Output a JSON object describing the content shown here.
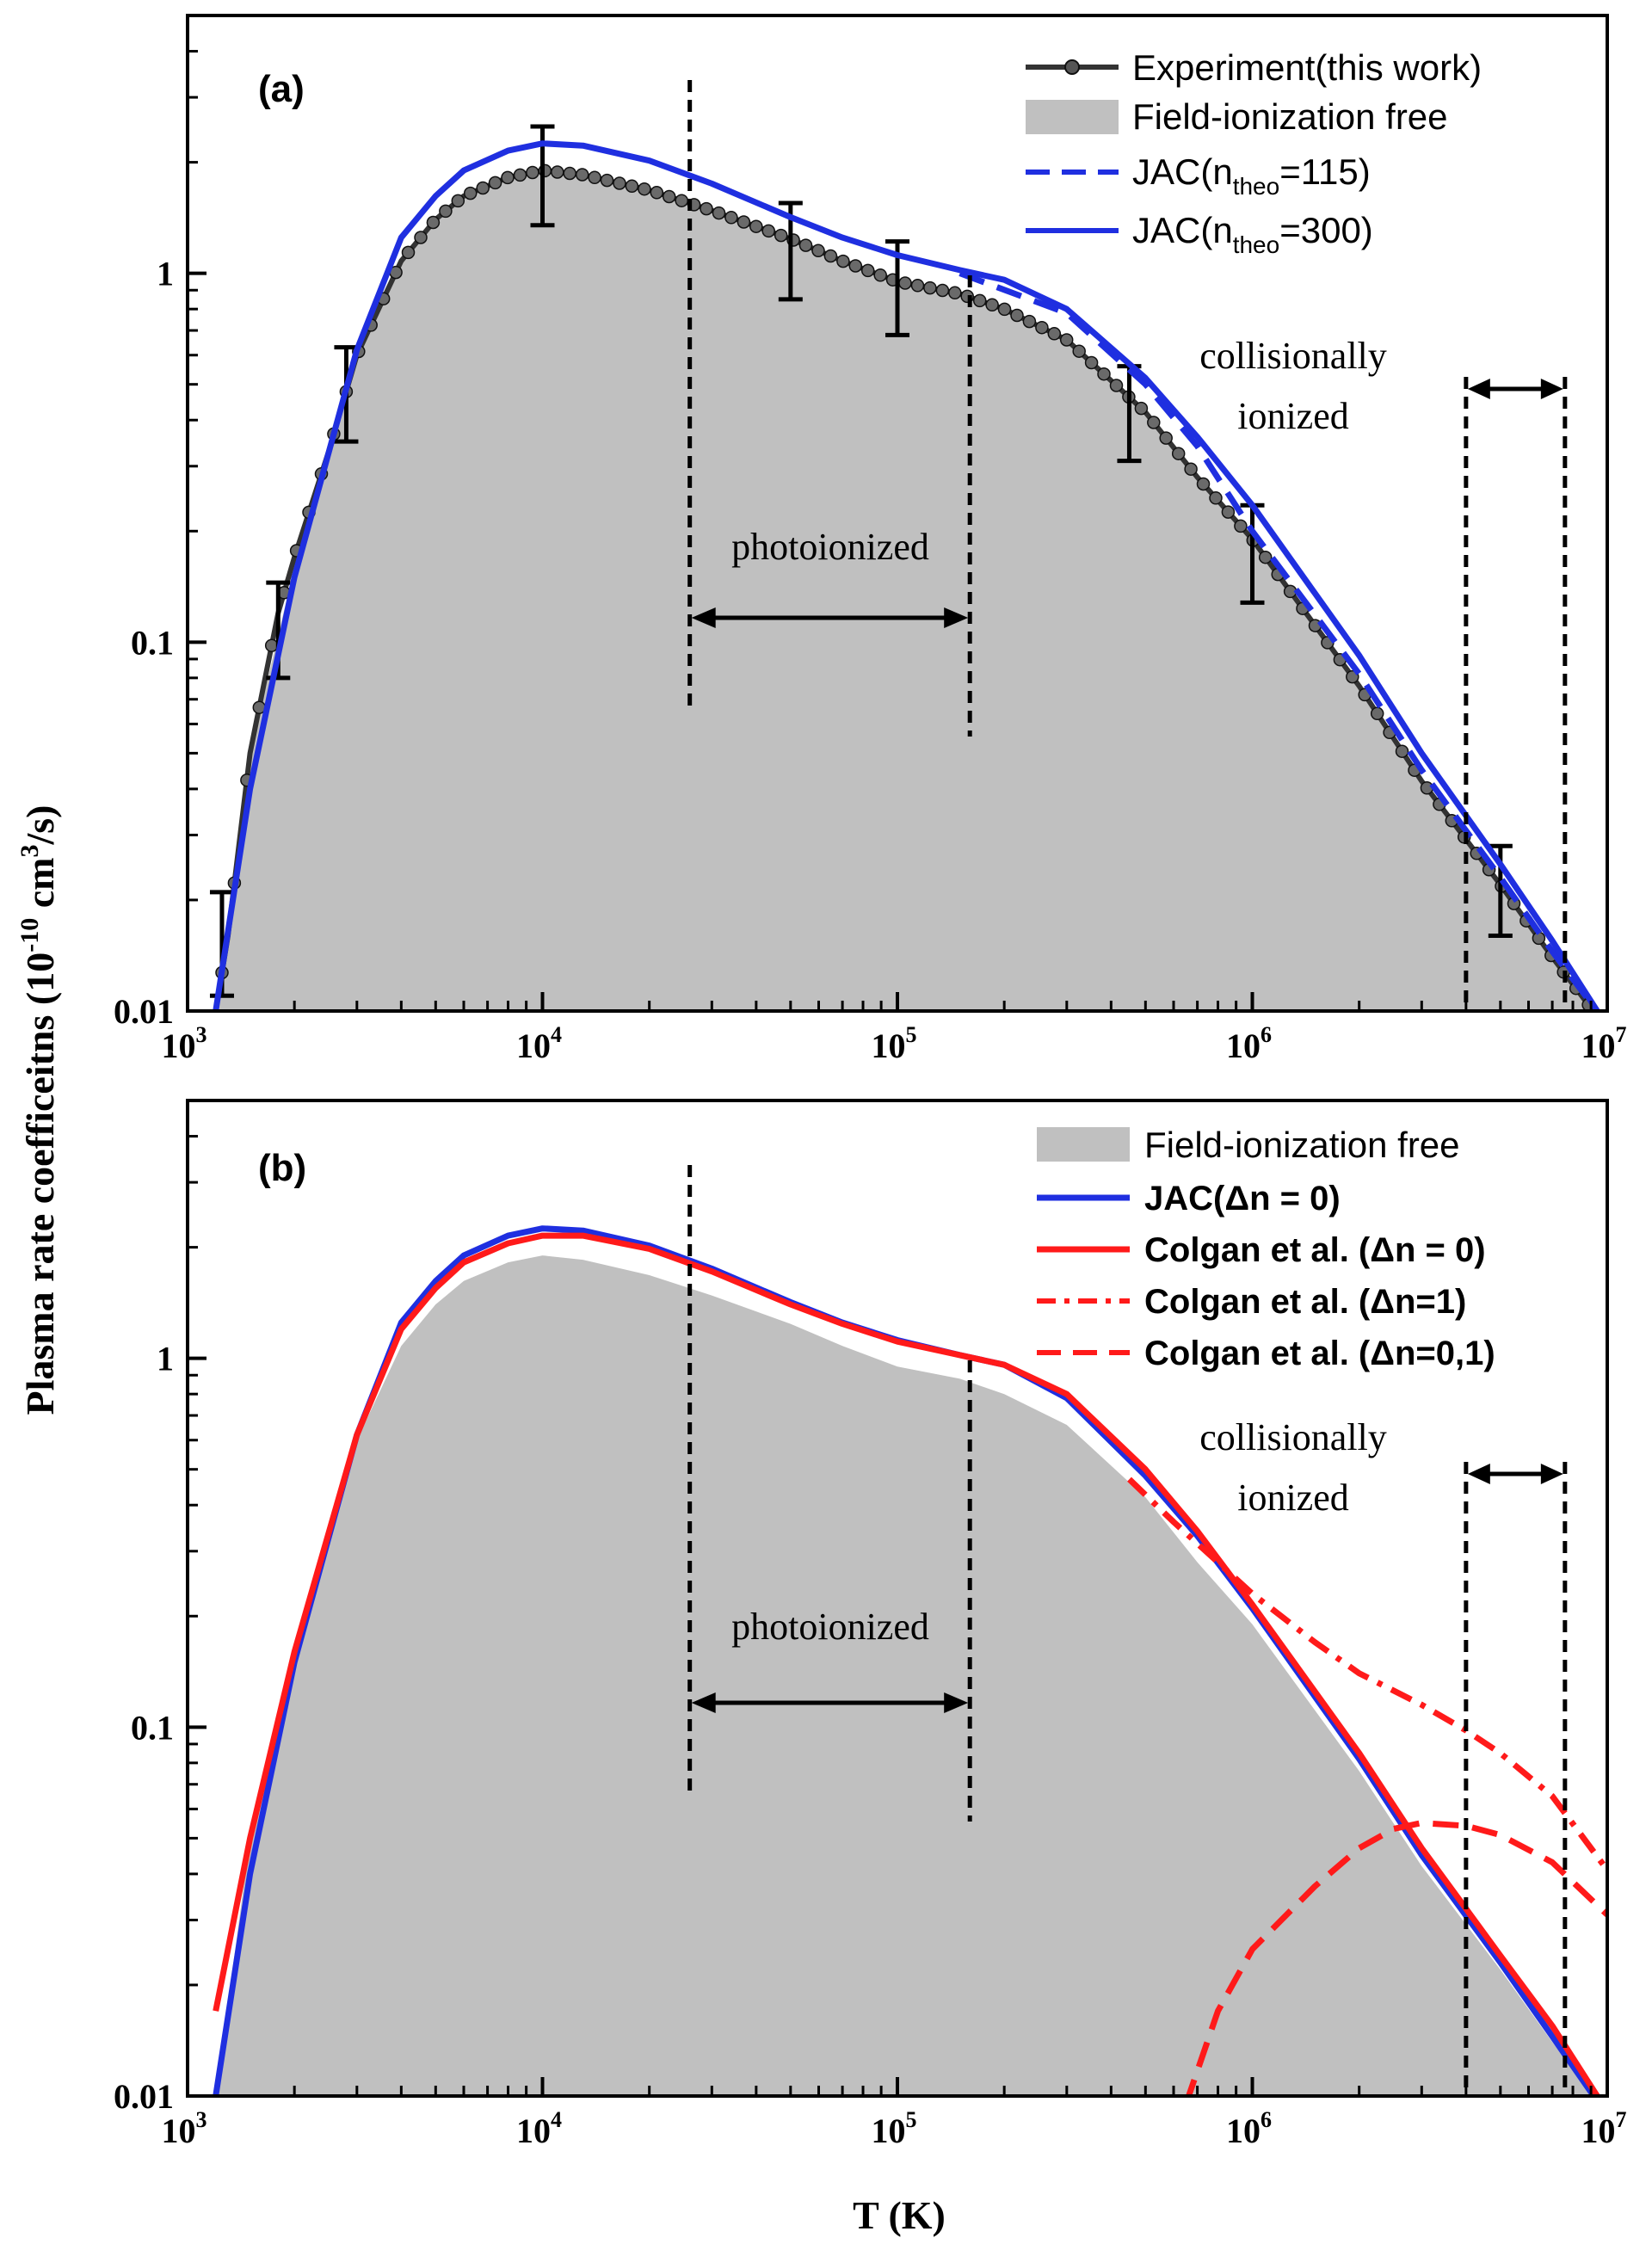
{
  "chart_data": [
    {
      "panel": "(a)",
      "type": "line",
      "xscale": "log",
      "yscale": "log",
      "xlim": [
        1000,
        10000000
      ],
      "ylim": [
        0.01,
        5
      ],
      "xlabel": "T (K)",
      "ylabel": "Plasma rate coefficeitns (10^-10 cm^3/s)",
      "x_ticks": [
        1000,
        10000,
        100000,
        1000000,
        10000000
      ],
      "x_tick_labels": [
        "10^3",
        "10^4",
        "10^5",
        "10^6",
        "10^7"
      ],
      "y_ticks": [
        0.01,
        0.1,
        1
      ],
      "y_tick_labels": [
        "0.01",
        "0.1",
        "1"
      ],
      "legend_position": "top-right",
      "series": [
        {
          "name": "Field-ionization free",
          "legend_label": "Field-ionization free",
          "style": "area",
          "color": "#c0c0c0",
          "points": [
            [
              1200,
              0.01
            ],
            [
              1500,
              0.05
            ],
            [
              2000,
              0.16
            ],
            [
              3000,
              0.6
            ],
            [
              4000,
              1.08
            ],
            [
              5000,
              1.4
            ],
            [
              6000,
              1.62
            ],
            [
              8000,
              1.82
            ],
            [
              10000,
              1.9
            ],
            [
              13000,
              1.85
            ],
            [
              20000,
              1.68
            ],
            [
              30000,
              1.48
            ],
            [
              50000,
              1.24
            ],
            [
              70000,
              1.08
            ],
            [
              100000,
              0.95
            ],
            [
              150000,
              0.88
            ],
            [
              200000,
              0.8
            ],
            [
              300000,
              0.66
            ],
            [
              500000,
              0.42
            ],
            [
              700000,
              0.28
            ],
            [
              1000000,
              0.19
            ],
            [
              2000000,
              0.076
            ],
            [
              3000000,
              0.042
            ],
            [
              5000000,
              0.022
            ],
            [
              7000000,
              0.014
            ],
            [
              9500000,
              0.0095
            ]
          ]
        },
        {
          "name": "Experiment(this work)",
          "legend_label": "Experiment(this work)",
          "style": "line-markers",
          "color": "#333333",
          "points": [
            [
              1200,
              0.01
            ],
            [
              1300,
              0.016
            ],
            [
              1500,
              0.05
            ],
            [
              1800,
              0.12
            ],
            [
              2000,
              0.17
            ],
            [
              2500,
              0.33
            ],
            [
              3000,
              0.6
            ],
            [
              4000,
              1.08
            ],
            [
              5000,
              1.4
            ],
            [
              6000,
              1.62
            ],
            [
              8000,
              1.82
            ],
            [
              10000,
              1.9
            ],
            [
              13000,
              1.85
            ],
            [
              20000,
              1.68
            ],
            [
              30000,
              1.48
            ],
            [
              50000,
              1.24
            ],
            [
              70000,
              1.08
            ],
            [
              100000,
              0.95
            ],
            [
              150000,
              0.88
            ],
            [
              200000,
              0.8
            ],
            [
              300000,
              0.66
            ],
            [
              500000,
              0.42
            ],
            [
              700000,
              0.28
            ],
            [
              1000000,
              0.19
            ],
            [
              2000000,
              0.076
            ],
            [
              3000000,
              0.042
            ],
            [
              5000000,
              0.022
            ],
            [
              7000000,
              0.014
            ],
            [
              9500000,
              0.0095
            ]
          ],
          "error_bars": [
            [
              1250,
              0.015,
              0.011,
              0.021
            ],
            [
              1800,
              0.11,
              0.08,
              0.145
            ],
            [
              2800,
              0.48,
              0.35,
              0.63
            ],
            [
              10000,
              1.85,
              1.35,
              2.5
            ],
            [
              50000,
              1.18,
              0.85,
              1.55
            ],
            [
              100000,
              0.93,
              0.68,
              1.22
            ],
            [
              450000,
              0.42,
              0.31,
              0.56
            ],
            [
              1000000,
              0.175,
              0.128,
              0.235
            ],
            [
              5000000,
              0.021,
              0.016,
              0.028
            ]
          ]
        },
        {
          "name": "JAC(ntheo=115)",
          "legend_label": "JAC(n",
          "legend_sub": "theo",
          "legend_tail": "=115)",
          "style": "dashed",
          "color": "#1f2fe0",
          "points": [
            [
              150000,
              1.0
            ],
            [
              300000,
              0.78
            ],
            [
              500000,
              0.5
            ],
            [
              700000,
              0.34
            ],
            [
              1000000,
              0.2
            ],
            [
              2000000,
              0.082
            ],
            [
              3000000,
              0.045
            ],
            [
              5000000,
              0.023
            ],
            [
              7000000,
              0.0145
            ],
            [
              9500000,
              0.0098
            ]
          ]
        },
        {
          "name": "JAC(ntheo=300)",
          "legend_label": "JAC(n",
          "legend_sub": "theo",
          "legend_tail": "=300)",
          "style": "solid",
          "color": "#1f2fe0",
          "points": [
            [
              1200,
              0.01
            ],
            [
              1500,
              0.04
            ],
            [
              2000,
              0.15
            ],
            [
              3000,
              0.62
            ],
            [
              4000,
              1.25
            ],
            [
              5000,
              1.62
            ],
            [
              6000,
              1.9
            ],
            [
              8000,
              2.15
            ],
            [
              10000,
              2.25
            ],
            [
              13000,
              2.22
            ],
            [
              20000,
              2.02
            ],
            [
              30000,
              1.75
            ],
            [
              50000,
              1.42
            ],
            [
              70000,
              1.25
            ],
            [
              100000,
              1.12
            ],
            [
              150000,
              1.02
            ],
            [
              200000,
              0.96
            ],
            [
              300000,
              0.8
            ],
            [
              500000,
              0.52
            ],
            [
              700000,
              0.36
            ],
            [
              1000000,
              0.235
            ],
            [
              2000000,
              0.092
            ],
            [
              3000000,
              0.05
            ],
            [
              5000000,
              0.025
            ],
            [
              7000000,
              0.0155
            ],
            [
              9500000,
              0.0098
            ]
          ]
        }
      ],
      "regions": {
        "photoionized": {
          "label": "photoionized",
          "x_range": [
            26000,
            160000
          ]
        },
        "collisionally": {
          "label_line1": "collisionally",
          "label_line2": "ionized",
          "x_range": [
            4000000,
            7600000
          ]
        }
      }
    },
    {
      "panel": "(b)",
      "type": "line",
      "xscale": "log",
      "yscale": "log",
      "xlim": [
        1000,
        10000000
      ],
      "ylim": [
        0.01,
        5
      ],
      "xlabel": "T (K)",
      "x_ticks": [
        1000,
        10000,
        100000,
        1000000,
        10000000
      ],
      "x_tick_labels": [
        "10^3",
        "10^4",
        "10^5",
        "10^6",
        "10^7"
      ],
      "y_ticks": [
        0.01,
        0.1,
        1
      ],
      "y_tick_labels": [
        "0.01",
        "0.1",
        "1"
      ],
      "legend_position": "top-right",
      "series": [
        {
          "name": "Field-ionization free",
          "legend_label": "Field-ionization free",
          "style": "area",
          "color": "#c0c0c0",
          "points": [
            [
              1200,
              0.01
            ],
            [
              1500,
              0.05
            ],
            [
              2000,
              0.16
            ],
            [
              3000,
              0.6
            ],
            [
              4000,
              1.08
            ],
            [
              5000,
              1.4
            ],
            [
              6000,
              1.62
            ],
            [
              8000,
              1.82
            ],
            [
              10000,
              1.9
            ],
            [
              13000,
              1.85
            ],
            [
              20000,
              1.68
            ],
            [
              30000,
              1.48
            ],
            [
              50000,
              1.24
            ],
            [
              70000,
              1.08
            ],
            [
              100000,
              0.95
            ],
            [
              150000,
              0.88
            ],
            [
              200000,
              0.8
            ],
            [
              300000,
              0.66
            ],
            [
              500000,
              0.42
            ],
            [
              700000,
              0.28
            ],
            [
              1000000,
              0.19
            ],
            [
              2000000,
              0.076
            ],
            [
              3000000,
              0.042
            ],
            [
              5000000,
              0.022
            ],
            [
              7000000,
              0.014
            ],
            [
              9500000,
              0.0095
            ]
          ]
        },
        {
          "name": "JAC(Δn = 0)",
          "legend_label": "JAC(Δn = 0)",
          "style": "solid",
          "color": "#1f2fe0",
          "points": [
            [
              1200,
              0.01
            ],
            [
              1500,
              0.04
            ],
            [
              2000,
              0.15
            ],
            [
              3000,
              0.62
            ],
            [
              4000,
              1.25
            ],
            [
              5000,
              1.62
            ],
            [
              6000,
              1.9
            ],
            [
              8000,
              2.15
            ],
            [
              10000,
              2.25
            ],
            [
              13000,
              2.22
            ],
            [
              20000,
              2.02
            ],
            [
              30000,
              1.75
            ],
            [
              50000,
              1.42
            ],
            [
              70000,
              1.25
            ],
            [
              100000,
              1.12
            ],
            [
              150000,
              1.02
            ],
            [
              200000,
              0.96
            ],
            [
              300000,
              0.78
            ],
            [
              500000,
              0.48
            ],
            [
              700000,
              0.33
            ],
            [
              1000000,
              0.21
            ],
            [
              2000000,
              0.082
            ],
            [
              3000000,
              0.045
            ],
            [
              5000000,
              0.023
            ],
            [
              7000000,
              0.0145
            ],
            [
              9500000,
              0.0095
            ]
          ]
        },
        {
          "name": "Colgan et al. (Δn = 0)",
          "legend_label": "Colgan et al. (Δn = 0)",
          "style": "solid",
          "color": "#ff1a1a",
          "points": [
            [
              1200,
              0.017
            ],
            [
              1500,
              0.05
            ],
            [
              2000,
              0.16
            ],
            [
              3000,
              0.62
            ],
            [
              4000,
              1.2
            ],
            [
              5000,
              1.55
            ],
            [
              6000,
              1.82
            ],
            [
              8000,
              2.05
            ],
            [
              10000,
              2.15
            ],
            [
              13000,
              2.15
            ],
            [
              20000,
              1.98
            ],
            [
              30000,
              1.72
            ],
            [
              50000,
              1.4
            ],
            [
              70000,
              1.24
            ],
            [
              100000,
              1.11
            ],
            [
              150000,
              1.02
            ],
            [
              200000,
              0.96
            ],
            [
              300000,
              0.8
            ],
            [
              500000,
              0.5
            ],
            [
              700000,
              0.34
            ],
            [
              1000000,
              0.215
            ],
            [
              2000000,
              0.085
            ],
            [
              3000000,
              0.047
            ],
            [
              5000000,
              0.024
            ],
            [
              7000000,
              0.0155
            ],
            [
              9500000,
              0.0098
            ]
          ]
        },
        {
          "name": "Colgan et al. (Δn=1)",
          "legend_label": "Colgan et al. (Δn=1)",
          "style": "dashdot",
          "color": "#ff1a1a",
          "points": [
            [
              450000,
              0.47
            ],
            [
              600000,
              0.36
            ],
            [
              800000,
              0.28
            ],
            [
              1000000,
              0.23
            ],
            [
              1500000,
              0.17
            ],
            [
              2000000,
              0.14
            ],
            [
              3000000,
              0.115
            ],
            [
              4000000,
              0.098
            ],
            [
              5000000,
              0.085
            ],
            [
              7000000,
              0.065
            ],
            [
              10000000,
              0.041
            ]
          ]
        },
        {
          "name": "Colgan et al. (Δn=0,1)",
          "legend_label": "Colgan et al. (Δn=0,1)",
          "style": "dashed",
          "color": "#ff1a1a",
          "points": [
            [
              650000,
              0.0095
            ],
            [
              800000,
              0.017
            ],
            [
              1000000,
              0.025
            ],
            [
              1500000,
              0.037
            ],
            [
              2000000,
              0.047
            ],
            [
              2500000,
              0.053
            ],
            [
              3000000,
              0.055
            ],
            [
              4000000,
              0.054
            ],
            [
              5000000,
              0.051
            ],
            [
              7000000,
              0.043
            ],
            [
              10000000,
              0.031
            ]
          ]
        }
      ],
      "regions": {
        "photoionized": {
          "label": "photoionized",
          "x_range": [
            26000,
            160000
          ]
        },
        "collisionally": {
          "label_line1": "collisionally",
          "label_line2": "ionized",
          "x_range": [
            4000000,
            7600000
          ]
        }
      }
    }
  ],
  "axis_labels": {
    "y_main": "Plasma rate coefficeitns (10",
    "y_exp1": "-10",
    "y_mid": " cm",
    "y_exp2": "3",
    "y_tail": "/s)",
    "x": "T (K)"
  },
  "colors": {
    "experiment": "#333333",
    "jac": "#1f2fe0",
    "colgan": "#ff1a1a",
    "area": "#c0c0c0"
  }
}
